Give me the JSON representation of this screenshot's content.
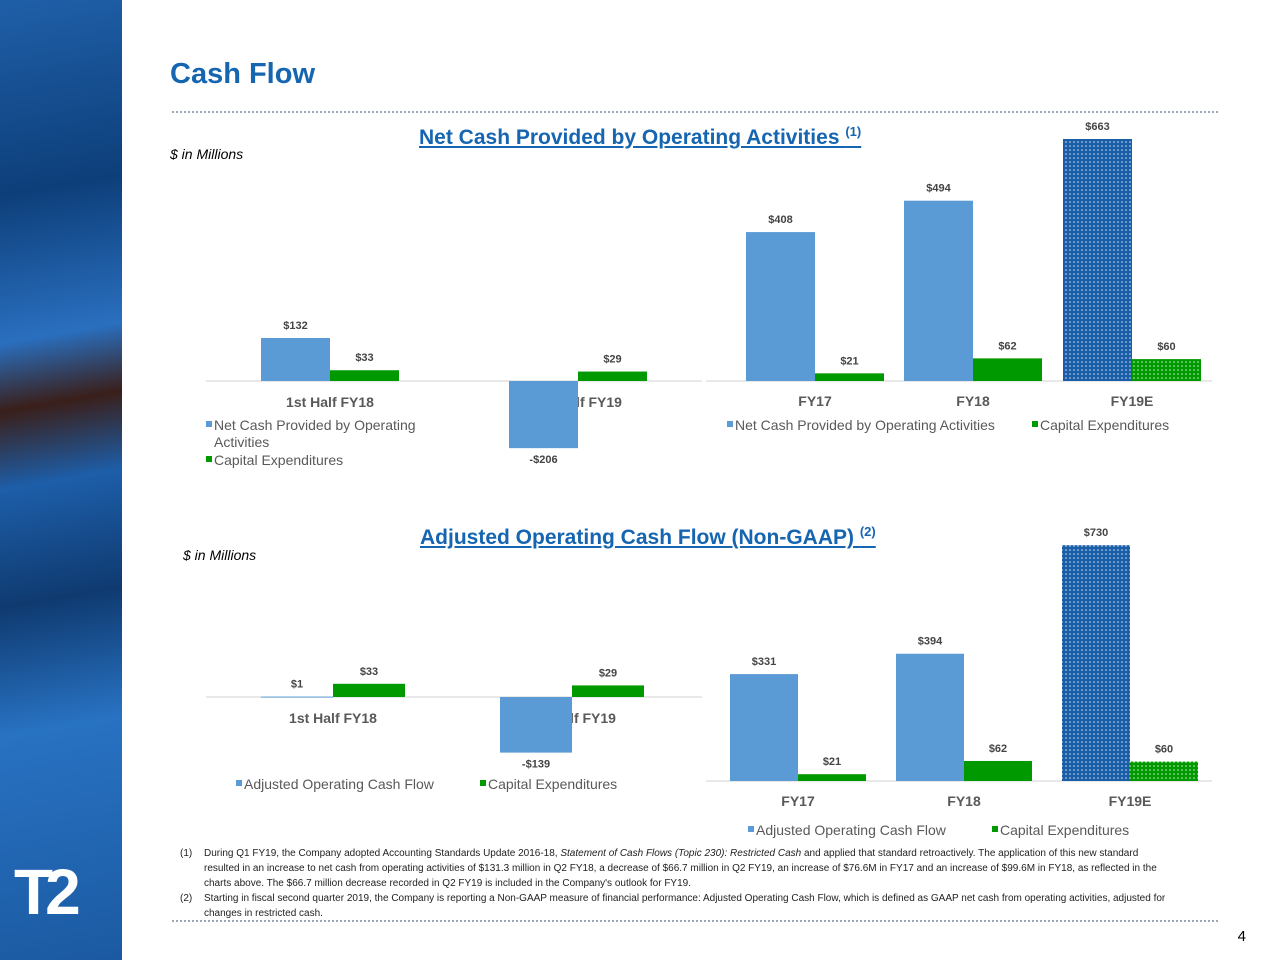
{
  "title": "Cash Flow",
  "logo": "T2",
  "page_number": "4",
  "colors": {
    "primary": "#5b9bd5",
    "capex": "#009900",
    "title": "#1565b0"
  },
  "unit_label": "$ in Millions",
  "chart_titles": {
    "top": "Net Cash Provided by Operating Activities",
    "top_note": "(1)",
    "bottom": "Adjusted Operating Cash Flow (Non-GAAP)",
    "bottom_note": "(2)"
  },
  "chart_data": [
    {
      "type": "bar",
      "categories": [
        "1st Half FY18",
        "1st Half FY19"
      ],
      "series": [
        {
          "name": "Net Cash Provided by Operating Activities",
          "values": [
            132,
            -206
          ],
          "labels": [
            "$132",
            "-$206"
          ]
        },
        {
          "name": "Capital Expenditures",
          "values": [
            33,
            29
          ],
          "labels": [
            "$33",
            "$29"
          ]
        }
      ]
    },
    {
      "type": "bar",
      "categories": [
        "FY17",
        "FY18",
        "FY19E"
      ],
      "series": [
        {
          "name": "Net Cash Provided by Operating Activities",
          "values": [
            408,
            494,
            663
          ],
          "labels": [
            "$408",
            "$494",
            "$663"
          ]
        },
        {
          "name": "Capital Expenditures",
          "values": [
            21,
            62,
            60
          ],
          "labels": [
            "$21",
            "$62",
            "$60"
          ]
        }
      ],
      "estimate_category": "FY19E"
    },
    {
      "type": "bar",
      "categories": [
        "1st Half FY18",
        "1st Half FY19"
      ],
      "series": [
        {
          "name": "Adjusted Operating Cash Flow",
          "values": [
            1,
            -139
          ],
          "labels": [
            "$1",
            "-$139"
          ]
        },
        {
          "name": "Capital Expenditures",
          "values": [
            33,
            29
          ],
          "labels": [
            "$33",
            "$29"
          ]
        }
      ]
    },
    {
      "type": "bar",
      "categories": [
        "FY17",
        "FY18",
        "FY19E"
      ],
      "series": [
        {
          "name": "Adjusted Operating Cash Flow",
          "values": [
            331,
            394,
            730
          ],
          "labels": [
            "$331",
            "$394",
            "$730"
          ]
        },
        {
          "name": "Capital Expenditures",
          "values": [
            21,
            62,
            60
          ],
          "labels": [
            "$21",
            "$62",
            "$60"
          ]
        }
      ],
      "estimate_category": "FY19E"
    }
  ],
  "footnotes": [
    {
      "num": "(1)",
      "text_a": "During Q1 FY19, the Company adopted Accounting Standards Update 2016-18, ",
      "text_italic": "Statement of Cash Flows (Topic 230): Restricted Cash",
      "text_b": " and applied that standard retroactively. The application of this new standard resulted in an increase to net cash from operating activities of $131.3 million in Q2 FY18, a decrease of $66.7 million in Q2 FY19, an increase of $76.6M in FY17 and an increase of $99.6M in FY18, as reflected in the charts above.  The $66.7 million decrease recorded in Q2 FY19 is included in the Company's outlook for FY19."
    },
    {
      "num": "(2)",
      "text_a": "Starting in fiscal second quarter 2019, the Company is reporting a Non-GAAP measure of financial performance: Adjusted Operating Cash Flow, which is defined as GAAP net cash from operating activities, adjusted for changes in restricted cash.",
      "text_italic": "",
      "text_b": ""
    }
  ]
}
